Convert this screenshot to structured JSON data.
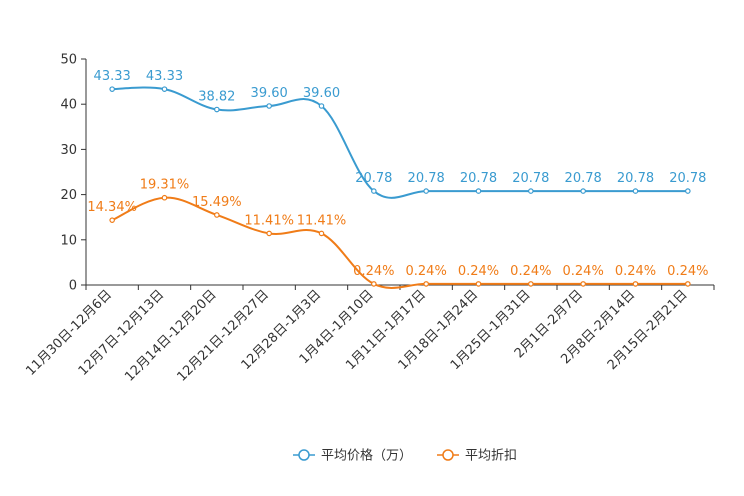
{
  "chart_data": {
    "type": "line",
    "title": "",
    "xlabel": "",
    "ylabel": "",
    "ylim": [
      0,
      50
    ],
    "yticks": [
      0,
      10,
      20,
      30,
      40,
      50
    ],
    "grid": false,
    "legend_position": "bottom-center",
    "categories": [
      "11月30日-12月6日",
      "12月7日-12月13日",
      "12月14日-12月20日",
      "12月21日-12月27日",
      "12月28日-1月3日",
      "1月4日-1月10日",
      "1月11日-1月17日",
      "1月18日-1月24日",
      "1月25日-1月31日",
      "2月1日-2月7日",
      "2月8日-2月14日",
      "2月15日-2月21日"
    ],
    "series": [
      {
        "name": "平均价格（万）",
        "color": "#3a9bd0",
        "values": [
          43.33,
          43.33,
          38.82,
          39.6,
          39.6,
          20.78,
          20.78,
          20.78,
          20.78,
          20.78,
          20.78,
          20.78
        ],
        "labels": [
          "43.33",
          "43.33",
          "38.82",
          "39.60",
          "39.60",
          "20.78",
          "20.78",
          "20.78",
          "20.78",
          "20.78",
          "20.78",
          "20.78"
        ]
      },
      {
        "name": "平均折扣",
        "color": "#f07c18",
        "values": [
          14.34,
          19.31,
          15.49,
          11.41,
          11.41,
          0.24,
          0.24,
          0.24,
          0.24,
          0.24,
          0.24,
          0.24
        ],
        "labels": [
          "14.34%",
          "19.31%",
          "15.49%",
          "11.41%",
          "11.41%",
          "0.24%",
          "0.24%",
          "0.24%",
          "0.24%",
          "0.24%",
          "0.24%",
          "0.24%"
        ]
      }
    ]
  }
}
